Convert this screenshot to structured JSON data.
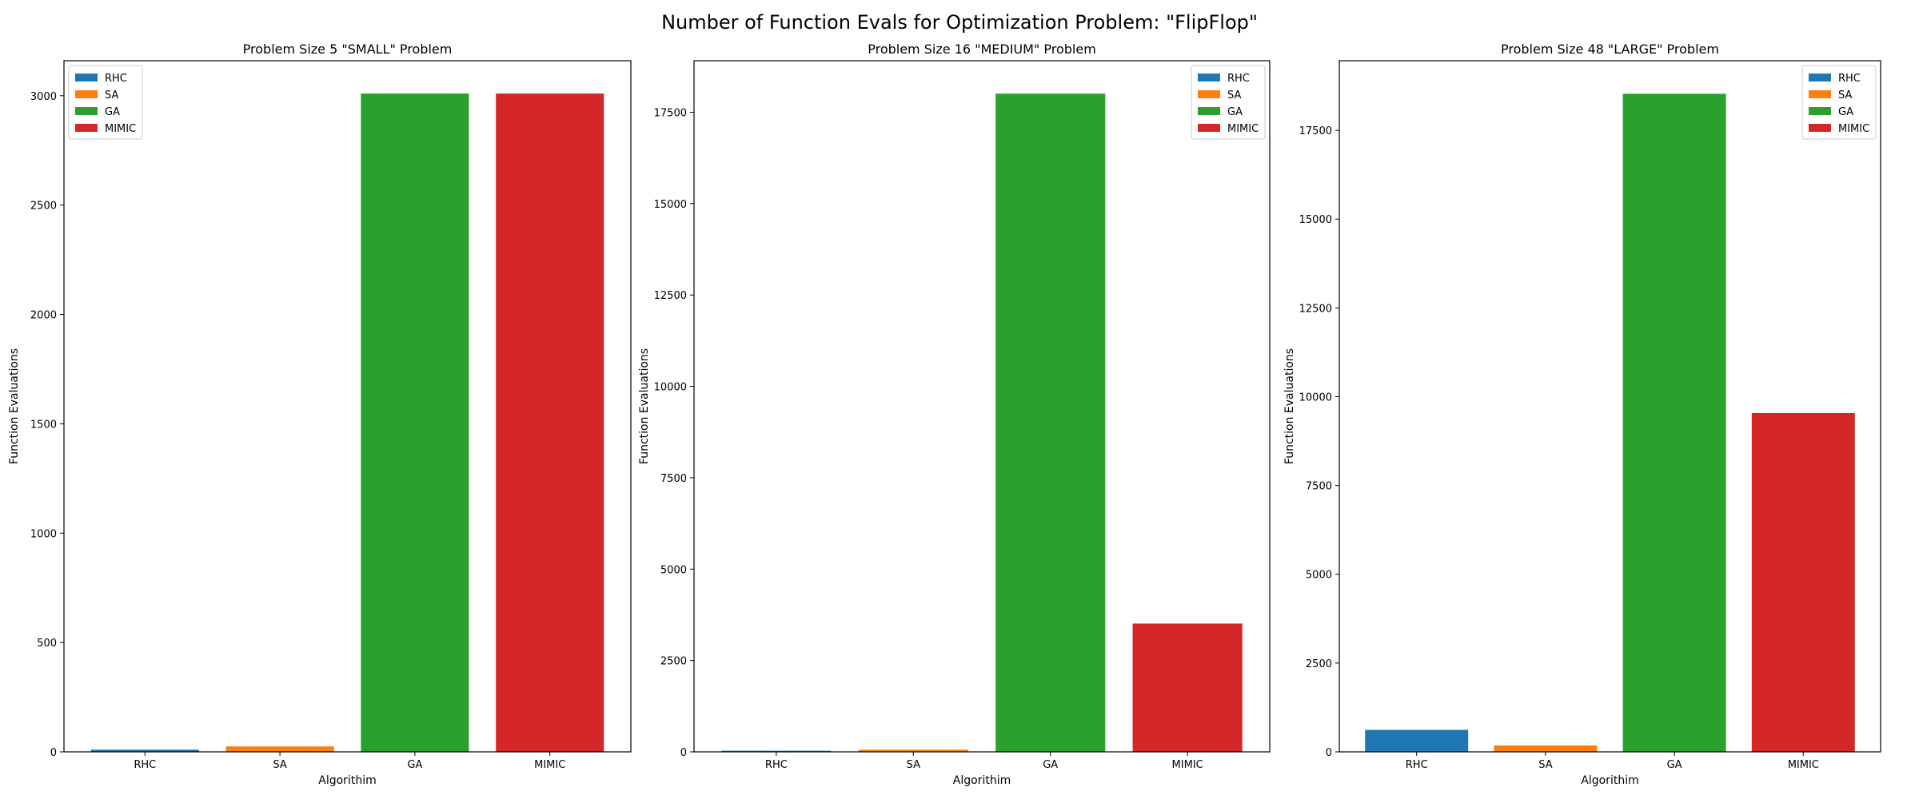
{
  "figure": {
    "title": "Number of Function Evals for Optimization Problem: \"FlipFlop\""
  },
  "colors": {
    "RHC": "#1f77b4",
    "SA": "#ff7f0e",
    "GA": "#2ca02c",
    "MIMIC": "#d62728"
  },
  "chart_data": [
    {
      "type": "bar",
      "title": "Problem Size 5 \"SMALL\" Problem",
      "xlabel": "Algorithim",
      "ylabel": "Function Evaluations",
      "categories": [
        "RHC",
        "SA",
        "GA",
        "MIMIC"
      ],
      "values": [
        10,
        25,
        3010,
        3010
      ],
      "ylim": [
        0,
        3160
      ],
      "yticks": [
        0,
        500,
        1000,
        1500,
        2000,
        2500,
        3000
      ],
      "legend": {
        "placement": "top-left",
        "entries": [
          "RHC",
          "SA",
          "GA",
          "MIMIC"
        ]
      }
    },
    {
      "type": "bar",
      "title": "Problem Size 16 \"MEDIUM\" Problem",
      "xlabel": "Algorithim",
      "ylabel": "Function Evaluations",
      "categories": [
        "RHC",
        "SA",
        "GA",
        "MIMIC"
      ],
      "values": [
        30,
        60,
        18010,
        3510
      ],
      "ylim": [
        0,
        18910
      ],
      "yticks": [
        0,
        2500,
        5000,
        7500,
        10000,
        12500,
        15000,
        17500
      ],
      "legend": {
        "placement": "top-right",
        "entries": [
          "RHC",
          "SA",
          "GA",
          "MIMIC"
        ]
      }
    },
    {
      "type": "bar",
      "title": "Problem Size 48 \"LARGE\" Problem",
      "xlabel": "Algorithim",
      "ylabel": "Function Evaluations",
      "categories": [
        "RHC",
        "SA",
        "GA",
        "MIMIC"
      ],
      "values": [
        620,
        180,
        18530,
        9540
      ],
      "ylim": [
        0,
        19460
      ],
      "yticks": [
        0,
        2500,
        5000,
        7500,
        10000,
        12500,
        15000,
        17500
      ],
      "legend": {
        "placement": "top-right",
        "entries": [
          "RHC",
          "SA",
          "GA",
          "MIMIC"
        ]
      }
    }
  ]
}
